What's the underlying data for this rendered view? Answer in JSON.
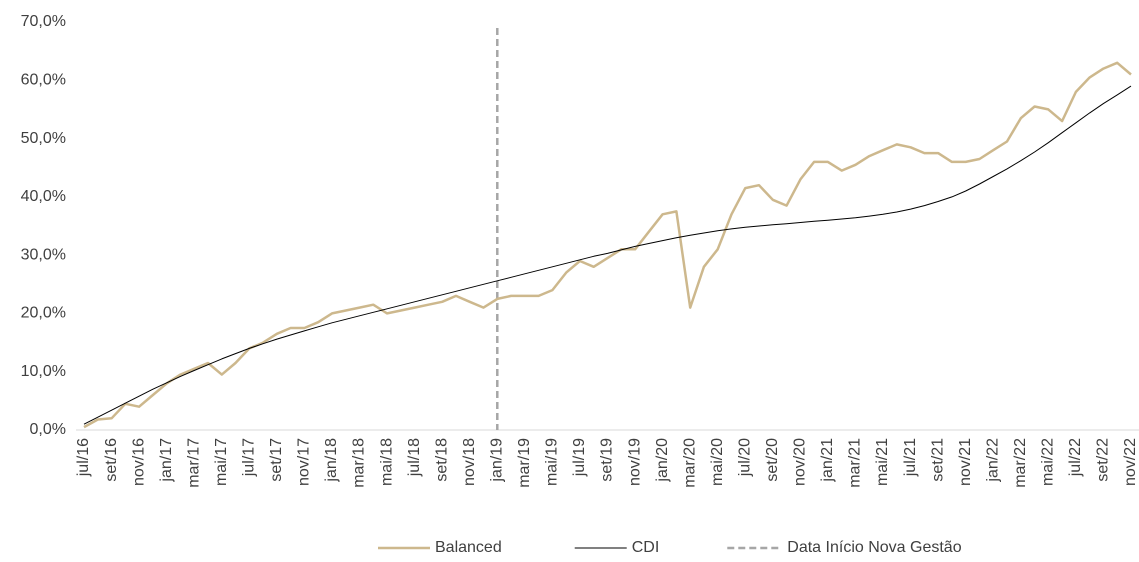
{
  "chart_data": {
    "type": "line",
    "categories": [
      "jul/16",
      null,
      "set/16",
      null,
      "nov/16",
      null,
      "jan/17",
      null,
      "mar/17",
      null,
      "mai/17",
      null,
      "jul/17",
      null,
      "set/17",
      null,
      "nov/17",
      null,
      "jan/18",
      null,
      "mar/18",
      null,
      "mai/18",
      null,
      "jul/18",
      null,
      "set/18",
      null,
      "nov/18",
      null,
      "jan/19",
      null,
      "mar/19",
      null,
      "mai/19",
      null,
      "jul/19",
      null,
      "set/19",
      null,
      "nov/19",
      null,
      "jan/20",
      null,
      "mar/20",
      null,
      "mai/20",
      null,
      "jul/20",
      null,
      "set/20",
      null,
      "nov/20",
      null,
      "jan/21",
      null,
      "mar/21",
      null,
      "mai/21",
      null,
      "jul/21",
      null,
      "set/21",
      null,
      "nov/21",
      null,
      "jan/22",
      null,
      "mar/22",
      null,
      "mai/22",
      null,
      "jul/22",
      null,
      "set/22",
      null,
      "nov/22"
    ],
    "series": [
      {
        "name": "Balanced",
        "color": "#cdb88d",
        "width": 2.5,
        "values": [
          0.5,
          1.8,
          2.0,
          4.5,
          4.0,
          6.0,
          8.0,
          9.5,
          10.5,
          11.5,
          9.5,
          11.5,
          14.0,
          15.0,
          16.5,
          17.5,
          17.5,
          18.5,
          20.0,
          20.5,
          21.0,
          21.5,
          20.0,
          20.5,
          21.0,
          21.5,
          22.0,
          23.0,
          22.0,
          21.0,
          22.5,
          23.0,
          23.0,
          23.0,
          24.0,
          27.0,
          29.0,
          28.0,
          29.5,
          31.0,
          31.0,
          34.0,
          37.0,
          37.5,
          21.0,
          28.0,
          31.0,
          37.0,
          41.5,
          42.0,
          39.5,
          38.5,
          43.0,
          46.0,
          46.0,
          44.5,
          45.5,
          47.0,
          48.0,
          49.0,
          48.5,
          47.5,
          47.5,
          46.0,
          46.0,
          46.5,
          48.0,
          49.5,
          53.5,
          55.5,
          55.0,
          53.0,
          58.0,
          60.5,
          62.0,
          63.0,
          61.0
        ]
      },
      {
        "name": "CDI",
        "color": "#000000",
        "width": 1,
        "values": [
          1.0,
          2.2,
          3.4,
          4.6,
          5.8,
          7.0,
          8.1,
          9.2,
          10.2,
          11.2,
          12.2,
          13.1,
          14.0,
          14.8,
          15.6,
          16.3,
          17.0,
          17.7,
          18.4,
          19.0,
          19.6,
          20.2,
          20.8,
          21.4,
          22.0,
          22.6,
          23.2,
          23.8,
          24.4,
          25.0,
          25.6,
          26.2,
          26.8,
          27.4,
          28.0,
          28.6,
          29.2,
          29.8,
          30.3,
          30.9,
          31.5,
          32.0,
          32.5,
          33.0,
          33.4,
          33.8,
          34.2,
          34.5,
          34.8,
          35.0,
          35.2,
          35.4,
          35.6,
          35.8,
          36.0,
          36.2,
          36.4,
          36.7,
          37.0,
          37.4,
          37.9,
          38.5,
          39.2,
          40.0,
          41.0,
          42.2,
          43.5,
          44.8,
          46.2,
          47.7,
          49.3,
          51.0,
          52.7,
          54.4,
          56.0,
          57.5,
          59.0
        ]
      }
    ],
    "reference_line": {
      "name": "Data Início Nova Gestão",
      "x": "jan/19",
      "color": "#a6a6a6"
    },
    "ylim": [
      0,
      70
    ],
    "yticks": [
      {
        "value": 0,
        "label": "0,0%"
      },
      {
        "value": 10,
        "label": "10,0%"
      },
      {
        "value": 20,
        "label": "20,0%"
      },
      {
        "value": 30,
        "label": "30,0%"
      },
      {
        "value": 40,
        "label": "40,0%"
      },
      {
        "value": 50,
        "label": "50,0%"
      },
      {
        "value": 60,
        "label": "60,0%"
      },
      {
        "value": 70,
        "label": "70,0%"
      }
    ],
    "legend": "bottom"
  }
}
